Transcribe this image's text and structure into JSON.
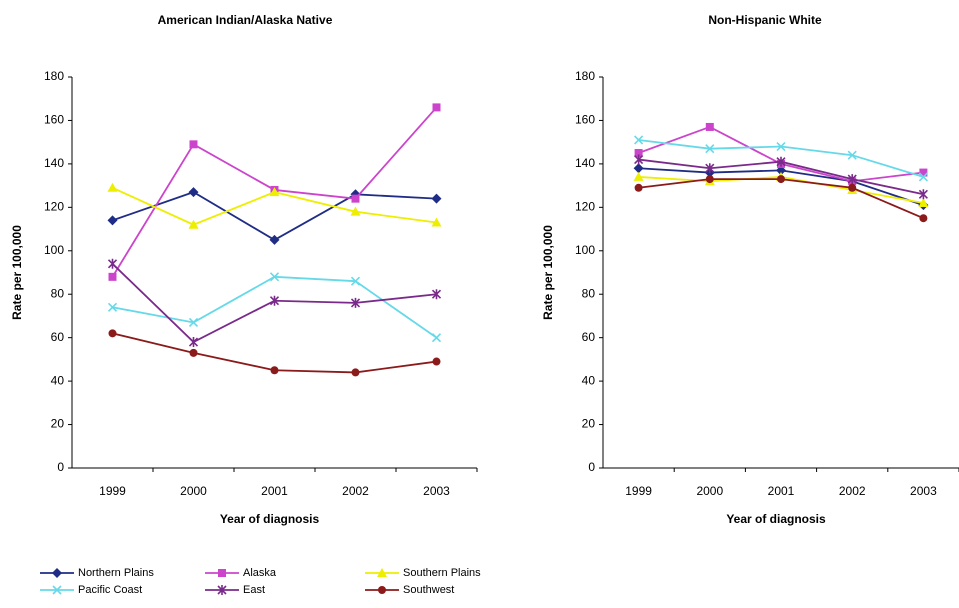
{
  "chart_data": [
    {
      "type": "line",
      "title": "American Indian/Alaska Native",
      "x_label": "Year of diagnosis",
      "y_label": "Rate per 100,000",
      "categories": [
        "1999",
        "2000",
        "2001",
        "2002",
        "2003"
      ],
      "ylim": [
        0,
        180
      ],
      "yticks": [
        0,
        20,
        40,
        60,
        80,
        100,
        120,
        140,
        160,
        180
      ],
      "grid": false,
      "series": [
        {
          "name": "Northern Plains",
          "color": "#1f2d86",
          "marker": "diamond",
          "values": [
            114,
            127,
            105,
            126,
            124
          ]
        },
        {
          "name": "Alaska",
          "color": "#cc44cc",
          "marker": "square",
          "values": [
            88,
            149,
            128,
            124,
            166
          ]
        },
        {
          "name": "Southern Plains",
          "color": "#eeee00",
          "marker": "triangle",
          "values": [
            129,
            112,
            127,
            118,
            113
          ]
        },
        {
          "name": "Pacific Coast",
          "color": "#66d9e8",
          "marker": "x",
          "values": [
            74,
            67,
            88,
            86,
            60
          ]
        },
        {
          "name": "East",
          "color": "#7a2a8a",
          "marker": "star",
          "values": [
            94,
            58,
            77,
            76,
            80
          ]
        },
        {
          "name": "Southwest",
          "color": "#8b1a1a",
          "marker": "circle",
          "values": [
            62,
            53,
            45,
            44,
            49
          ]
        }
      ]
    },
    {
      "type": "line",
      "title": "Non-Hispanic White",
      "x_label": "Year of diagnosis",
      "y_label": "Rate per 100,000",
      "categories": [
        "1999",
        "2000",
        "2001",
        "2002",
        "2003"
      ],
      "ylim": [
        0,
        180
      ],
      "yticks": [
        0,
        20,
        40,
        60,
        80,
        100,
        120,
        140,
        160,
        180
      ],
      "grid": false,
      "series": [
        {
          "color": "#1f2d86",
          "marker": "diamond",
          "values": [
            138,
            136,
            137,
            132,
            121
          ]
        },
        {
          "color": "#cc44cc",
          "marker": "square",
          "values": [
            145,
            157,
            140,
            132,
            136
          ]
        },
        {
          "color": "#eeee00",
          "marker": "triangle",
          "values": [
            134,
            132,
            134,
            128,
            122
          ]
        },
        {
          "color": "#66d9e8",
          "marker": "x",
          "values": [
            151,
            147,
            148,
            144,
            134
          ]
        },
        {
          "color": "#7a2a8a",
          "marker": "star",
          "values": [
            142,
            138,
            141,
            133,
            126
          ]
        },
        {
          "color": "#8b1a1a",
          "marker": "circle",
          "values": [
            129,
            133,
            133,
            129,
            115
          ]
        }
      ]
    }
  ]
}
